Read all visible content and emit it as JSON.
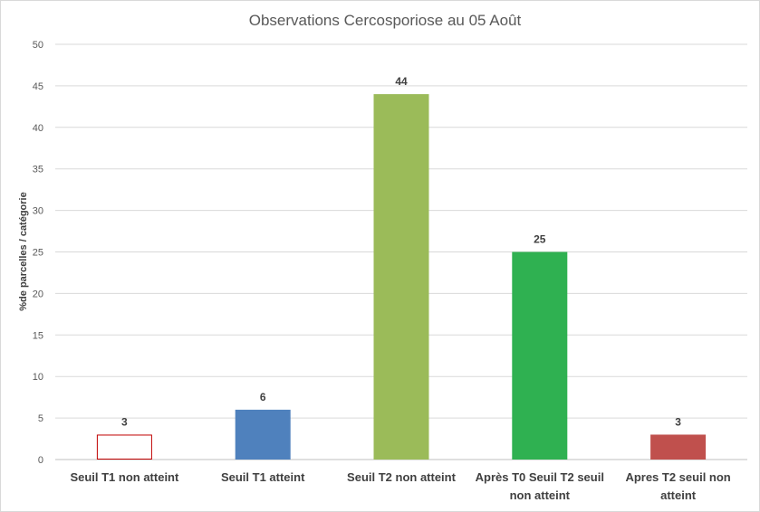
{
  "chart_data": {
    "type": "bar",
    "title": "Observations Cercosporiose au 05 Août",
    "xlabel": "",
    "ylabel": "%de parcelles / catégorie",
    "ylim": [
      0,
      50
    ],
    "yticks": [
      0,
      5,
      10,
      15,
      20,
      25,
      30,
      35,
      40,
      45,
      50
    ],
    "grid": true,
    "legend": "none",
    "categories": [
      [
        "Seuil T1 non atteint"
      ],
      [
        "Seuil T1 atteint"
      ],
      [
        "Seuil T2 non atteint"
      ],
      [
        "Après T0 Seuil T2 seuil",
        "non atteint"
      ],
      [
        "Apres T2  seuil non",
        "atteint"
      ]
    ],
    "values": [
      3,
      6,
      44,
      25,
      3
    ],
    "colors": [
      {
        "fill": "#ffffff",
        "stroke": "#c00000"
      },
      {
        "fill": "#4f81bd",
        "stroke": "none"
      },
      {
        "fill": "#9bbb59",
        "stroke": "none"
      },
      {
        "fill": "#2fb151",
        "stroke": "none"
      },
      {
        "fill": "#c0504d",
        "stroke": "none"
      }
    ]
  }
}
